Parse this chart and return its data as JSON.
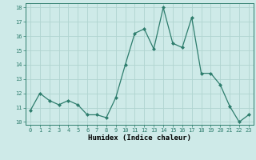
{
  "x": [
    0,
    1,
    2,
    3,
    4,
    5,
    6,
    7,
    8,
    9,
    10,
    11,
    12,
    13,
    14,
    15,
    16,
    17,
    18,
    19,
    20,
    21,
    22,
    23
  ],
  "y": [
    10.8,
    12.0,
    11.5,
    11.2,
    11.5,
    11.2,
    10.5,
    10.5,
    10.3,
    11.7,
    14.0,
    16.2,
    16.5,
    15.1,
    18.0,
    15.5,
    15.2,
    17.3,
    13.4,
    13.4,
    12.6,
    11.1,
    10.0,
    10.5
  ],
  "xlabel": "Humidex (Indice chaleur)",
  "ylim": [
    9.8,
    18.3
  ],
  "xlim": [
    -0.5,
    23.5
  ],
  "yticks": [
    10,
    11,
    12,
    13,
    14,
    15,
    16,
    17,
    18
  ],
  "xticks": [
    0,
    1,
    2,
    3,
    4,
    5,
    6,
    7,
    8,
    9,
    10,
    11,
    12,
    13,
    14,
    15,
    16,
    17,
    18,
    19,
    20,
    21,
    22,
    23
  ],
  "line_color": "#2e7d6d",
  "marker_color": "#2e7d6d",
  "bg_color": "#ceeae8",
  "grid_color": "#b0d4d0",
  "fig_bg": "#ceeae8",
  "tick_fontsize": 5.0,
  "xlabel_fontsize": 6.5,
  "ylabel_fontsize": 6.0
}
